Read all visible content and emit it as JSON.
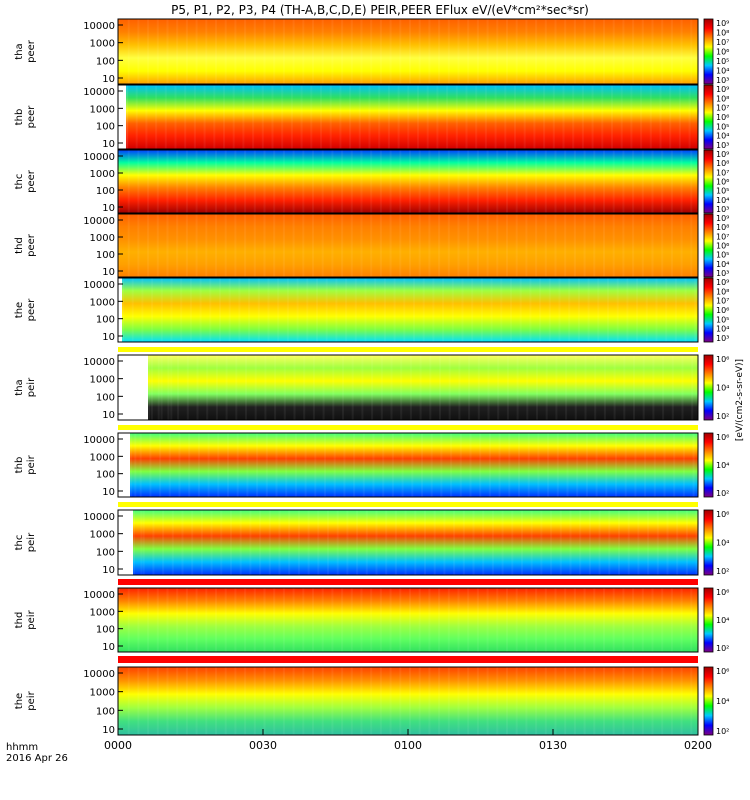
{
  "chart_data": {
    "type": "heatmap",
    "title": "P5, P1, P2, P3, P4 (TH-A,B,C,D,E) PEIR,PEER EFlux eV/(eV*cm²*sec*sr)",
    "colorbar_label": "[eV/(cm2-s-sr-eV)]",
    "x_ticks": [
      "0000",
      "0030",
      "0100",
      "0130",
      "0200"
    ],
    "x_label": [
      "hhmm",
      "2016 Apr 26"
    ],
    "y_ticks": [
      "10",
      "100",
      "1000",
      "10000"
    ],
    "y_scale": "log",
    "colorscale": [
      "#800080",
      "#0000ff",
      "#00c8ff",
      "#00ff00",
      "#ffff00",
      "#ff8000",
      "#ff0000",
      "#a00000"
    ],
    "panels": [
      {
        "probe": "tha",
        "species": "peer",
        "colorbar_ticks": [
          "10³",
          "10⁴",
          "10⁵",
          "10⁶",
          "10⁷",
          "10⁸",
          "10⁹"
        ]
      },
      {
        "probe": "thb",
        "species": "peer",
        "colorbar_ticks": [
          "10³",
          "10⁴",
          "10⁵",
          "10⁶",
          "10⁷",
          "10⁸",
          "10⁹"
        ]
      },
      {
        "probe": "thc",
        "species": "peer",
        "colorbar_ticks": [
          "10³",
          "10⁴",
          "10⁵",
          "10⁶",
          "10⁷",
          "10⁸",
          "10⁹"
        ]
      },
      {
        "probe": "thd",
        "species": "peer",
        "colorbar_ticks": [
          "10³",
          "10⁴",
          "10⁵",
          "10⁶",
          "10⁷",
          "10⁸",
          "10⁹"
        ]
      },
      {
        "probe": "the",
        "species": "peer",
        "colorbar_ticks": [
          "10³",
          "10⁴",
          "10⁵",
          "10⁶",
          "10⁷",
          "10⁸",
          "10⁹"
        ]
      },
      {
        "probe": "tha",
        "species": "peir",
        "colorbar_ticks": [
          "10²",
          "10⁴",
          "10⁶"
        ]
      },
      {
        "probe": "thb",
        "species": "peir",
        "colorbar_ticks": [
          "10²",
          "10⁴",
          "10⁶"
        ]
      },
      {
        "probe": "thc",
        "species": "peir",
        "colorbar_ticks": [
          "10²",
          "10⁴",
          "10⁶"
        ]
      },
      {
        "probe": "thd",
        "species": "peir",
        "colorbar_ticks": [
          "10²",
          "10⁴",
          "10⁶"
        ]
      },
      {
        "probe": "the",
        "species": "peir",
        "colorbar_ticks": [
          "10²",
          "10⁴",
          "10⁶"
        ]
      }
    ]
  }
}
